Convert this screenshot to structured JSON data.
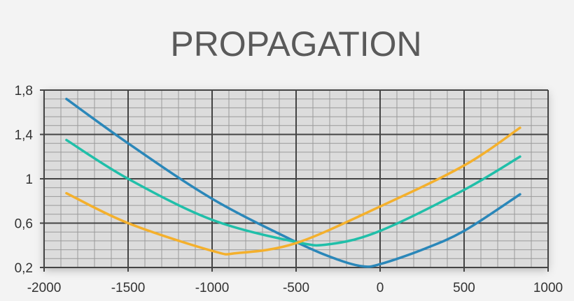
{
  "chart_data": {
    "type": "line",
    "title": "PROPAGATION",
    "xlabel": "",
    "ylabel": "",
    "xlim": [
      -2000,
      1000
    ],
    "ylim": [
      0.2,
      1.8
    ],
    "xticks": [
      -2000,
      -1500,
      -1000,
      -500,
      0,
      500,
      1000
    ],
    "xtick_labels": [
      "-2000",
      "-1500",
      "-1000",
      "-500",
      "0",
      "500",
      "1000"
    ],
    "yticks": [
      0.2,
      0.6,
      1.0,
      1.4,
      1.8
    ],
    "ytick_labels": [
      "0,2",
      "0,6",
      "1",
      "1,4",
      "1,8"
    ],
    "grid": true,
    "minor_grid": {
      "x_step": 100,
      "y_step": 0.08
    },
    "series": [
      {
        "color": "#2a87b9",
        "points": [
          [
            -1867,
            1.72
          ],
          [
            -1500,
            1.32
          ],
          [
            -1000,
            0.82
          ],
          [
            -500,
            0.43
          ],
          [
            -250,
            0.27
          ],
          [
            -100,
            0.21
          ],
          [
            0,
            0.23
          ],
          [
            250,
            0.36
          ],
          [
            500,
            0.53
          ],
          [
            833,
            0.86
          ]
        ]
      },
      {
        "color": "#20bfa9",
        "points": [
          [
            -1867,
            1.35
          ],
          [
            -1500,
            1.0
          ],
          [
            -1000,
            0.63
          ],
          [
            -500,
            0.43
          ],
          [
            -300,
            0.41
          ],
          [
            0,
            0.53
          ],
          [
            500,
            0.9
          ],
          [
            833,
            1.2
          ]
        ]
      },
      {
        "color": "#f4b02c",
        "points": [
          [
            -1867,
            0.87
          ],
          [
            -1500,
            0.6
          ],
          [
            -1000,
            0.35
          ],
          [
            -850,
            0.33
          ],
          [
            -500,
            0.42
          ],
          [
            0,
            0.75
          ],
          [
            500,
            1.12
          ],
          [
            833,
            1.46
          ]
        ]
      }
    ]
  }
}
